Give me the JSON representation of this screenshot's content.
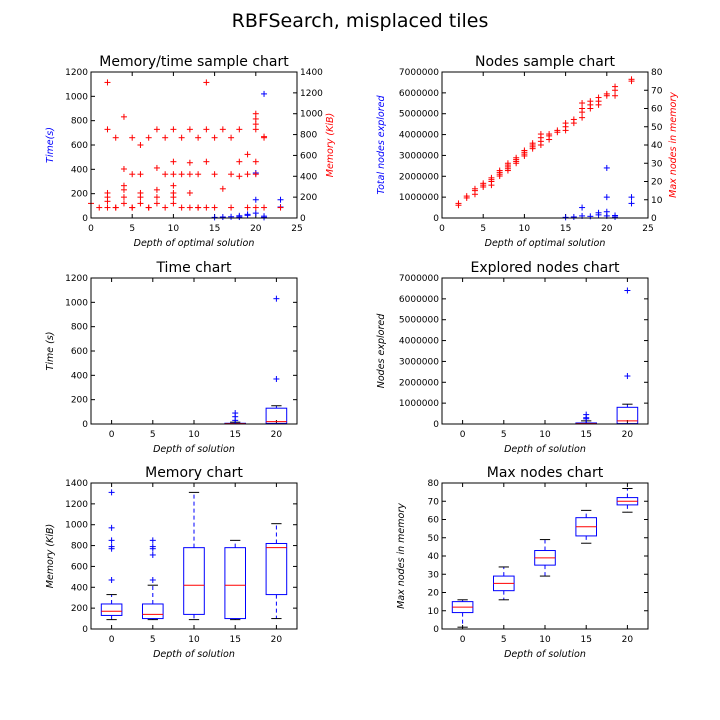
{
  "figure": {
    "title": "RBFSearch, misplaced tiles"
  },
  "chart_data": [
    {
      "id": "memtime",
      "type": "scatter",
      "title": "Memory/time sample chart",
      "xlabel": "Depth of optimal solution",
      "ylabel": "Time(s)",
      "y2label": "Memory (KiB)",
      "xlim": [
        0,
        25
      ],
      "ylim": [
        0,
        1200
      ],
      "y2lim": [
        0,
        1400
      ],
      "xticks": [
        0,
        5,
        10,
        15,
        20,
        25
      ],
      "yticks": [
        0,
        200,
        400,
        600,
        800,
        1000,
        1200
      ],
      "y2ticks": [
        0,
        200,
        400,
        600,
        800,
        1000,
        1200,
        1400
      ],
      "series": [
        {
          "axis": "left",
          "color": "#0000ff",
          "points": [
            [
              15,
              5
            ],
            [
              16,
              8
            ],
            [
              17,
              10
            ],
            [
              18,
              18
            ],
            [
              19,
              22
            ],
            [
              19,
              30
            ],
            [
              20,
              150
            ],
            [
              20,
              370
            ],
            [
              20,
              40
            ],
            [
              21,
              1020
            ],
            [
              21,
              15
            ],
            [
              23,
              150
            ],
            [
              23,
              90
            ],
            [
              21,
              5
            ],
            [
              18,
              8
            ]
          ]
        },
        {
          "axis": "right",
          "color": "#ff0000",
          "points": [
            [
              2,
              1300
            ],
            [
              2,
              850
            ],
            [
              3,
              770
            ],
            [
              4,
              970
            ],
            [
              5,
              770
            ],
            [
              6,
              700
            ],
            [
              7,
              770
            ],
            [
              8,
              850
            ],
            [
              9,
              770
            ],
            [
              10,
              850
            ],
            [
              10,
              540
            ],
            [
              11,
              770
            ],
            [
              12,
              850
            ],
            [
              12,
              530
            ],
            [
              13,
              770
            ],
            [
              14,
              1300
            ],
            [
              14,
              850
            ],
            [
              15,
              770
            ],
            [
              16,
              850
            ],
            [
              17,
              770
            ],
            [
              18,
              850
            ],
            [
              18,
              540
            ],
            [
              19,
              610
            ],
            [
              20,
              1000
            ],
            [
              20,
              950
            ],
            [
              20,
              900
            ],
            [
              20,
              850
            ],
            [
              21,
              770
            ],
            [
              21,
              780
            ],
            [
              0,
              140
            ],
            [
              2,
              240
            ],
            [
              3,
              100
            ],
            [
              4,
              470
            ],
            [
              4,
              310
            ],
            [
              4,
              270
            ],
            [
              5,
              420
            ],
            [
              5,
              100
            ],
            [
              6,
              420
            ],
            [
              7,
              100
            ],
            [
              8,
              480
            ],
            [
              8,
              270
            ],
            [
              9,
              420
            ],
            [
              10,
              420
            ],
            [
              10,
              310
            ],
            [
              11,
              420
            ],
            [
              12,
              240
            ],
            [
              12,
              420
            ],
            [
              13,
              420
            ],
            [
              13,
              100
            ],
            [
              14,
              540
            ],
            [
              15,
              420
            ],
            [
              16,
              280
            ],
            [
              17,
              420
            ],
            [
              18,
              400
            ],
            [
              19,
              420
            ],
            [
              20,
              540
            ],
            [
              20,
              420
            ],
            [
              1,
              100
            ],
            [
              2,
              100
            ],
            [
              2,
              160
            ],
            [
              2,
              200
            ],
            [
              3,
              100
            ],
            [
              4,
              140
            ],
            [
              4,
              200
            ],
            [
              5,
              100
            ],
            [
              6,
              140
            ],
            [
              6,
              200
            ],
            [
              6,
              240
            ],
            [
              7,
              100
            ],
            [
              8,
              200
            ],
            [
              8,
              140
            ],
            [
              9,
              100
            ],
            [
              10,
              140
            ],
            [
              10,
              200
            ],
            [
              10,
              240
            ],
            [
              11,
              100
            ],
            [
              12,
              100
            ],
            [
              13,
              100
            ],
            [
              14,
              100
            ],
            [
              15,
              100
            ],
            [
              17,
              100
            ],
            [
              19,
              100
            ],
            [
              20,
              100
            ],
            [
              21,
              100
            ],
            [
              23,
              100
            ]
          ]
        }
      ]
    },
    {
      "id": "nodes",
      "type": "scatter",
      "title": "Nodes sample chart",
      "xlabel": "Depth of optimal solution",
      "ylabel": "Total nodes explored",
      "y2label": "Max nodes in memory",
      "xlim": [
        0,
        25
      ],
      "ylim": [
        0,
        7000000
      ],
      "y2lim": [
        0,
        80
      ],
      "xticks": [
        0,
        5,
        10,
        15,
        20,
        25
      ],
      "yticks": [
        0,
        1000000,
        2000000,
        3000000,
        4000000,
        5000000,
        6000000,
        7000000
      ],
      "y2ticks": [
        0,
        10,
        20,
        30,
        40,
        50,
        60,
        70,
        80
      ],
      "series": [
        {
          "axis": "left",
          "color": "#0000ff",
          "points": [
            [
              15,
              30000
            ],
            [
              16,
              50000
            ],
            [
              17,
              100000
            ],
            [
              17,
              500000
            ],
            [
              18,
              80000
            ],
            [
              19,
              150000
            ],
            [
              19,
              250000
            ],
            [
              20,
              2400000
            ],
            [
              20,
              1000000
            ],
            [
              20,
              300000
            ],
            [
              20,
              100000
            ],
            [
              21,
              50000
            ],
            [
              21,
              120000
            ],
            [
              23,
              1000000
            ],
            [
              23,
              700000
            ]
          ]
        },
        {
          "axis": "right",
          "color": "#ff0000",
          "points": [
            [
              2,
              7
            ],
            [
              2,
              8
            ],
            [
              3,
              11
            ],
            [
              3,
              12
            ],
            [
              4,
              13
            ],
            [
              4,
              15
            ],
            [
              4,
              16
            ],
            [
              5,
              17
            ],
            [
              5,
              18
            ],
            [
              5,
              19
            ],
            [
              6,
              18
            ],
            [
              6,
              20
            ],
            [
              6,
              21
            ],
            [
              6,
              22
            ],
            [
              7,
              23
            ],
            [
              7,
              24
            ],
            [
              7,
              25
            ],
            [
              7,
              26
            ],
            [
              8,
              26
            ],
            [
              8,
              27
            ],
            [
              8,
              28
            ],
            [
              8,
              29
            ],
            [
              8,
              30
            ],
            [
              9,
              30
            ],
            [
              9,
              31
            ],
            [
              9,
              32
            ],
            [
              9,
              33
            ],
            [
              10,
              34
            ],
            [
              10,
              35
            ],
            [
              10,
              36
            ],
            [
              10,
              37
            ],
            [
              11,
              38
            ],
            [
              11,
              39
            ],
            [
              11,
              40
            ],
            [
              11,
              41
            ],
            [
              12,
              40
            ],
            [
              12,
              42
            ],
            [
              12,
              44
            ],
            [
              12,
              46
            ],
            [
              13,
              43
            ],
            [
              13,
              45
            ],
            [
              13,
              46
            ],
            [
              14,
              47
            ],
            [
              14,
              48
            ],
            [
              15,
              48
            ],
            [
              15,
              50
            ],
            [
              15,
              52
            ],
            [
              16,
              52
            ],
            [
              16,
              54
            ],
            [
              17,
              55
            ],
            [
              17,
              58
            ],
            [
              17,
              60
            ],
            [
              17,
              63
            ],
            [
              18,
              60
            ],
            [
              18,
              62
            ],
            [
              18,
              64
            ],
            [
              19,
              62
            ],
            [
              19,
              64
            ],
            [
              19,
              66
            ],
            [
              20,
              67
            ],
            [
              20,
              68
            ],
            [
              21,
              67
            ],
            [
              21,
              70
            ],
            [
              21,
              72
            ],
            [
              23,
              75
            ],
            [
              23,
              76
            ]
          ]
        }
      ]
    },
    {
      "id": "time",
      "type": "box",
      "title": "Time chart",
      "xlabel": "Depth of solution",
      "ylabel": "Time (s)",
      "xlim": [
        -2.5,
        22.5
      ],
      "ylim": [
        0,
        1200
      ],
      "xticks": [
        0,
        5,
        10,
        15,
        20
      ],
      "yticks": [
        0,
        200,
        400,
        600,
        800,
        1000,
        1200
      ],
      "boxes": [
        {
          "x": 15,
          "q1": 1,
          "median": 3,
          "q3": 6,
          "whislo": 0,
          "whishi": 15,
          "fliers": [
            30,
            60,
            90
          ]
        },
        {
          "x": 20,
          "q1": 5,
          "median": 20,
          "q3": 130,
          "whislo": 0,
          "whishi": 150,
          "fliers": [
            1030,
            370
          ]
        }
      ]
    },
    {
      "id": "explored",
      "type": "box",
      "title": "Explored nodes chart",
      "xlabel": "Depth of solution",
      "ylabel": "Nodes explored",
      "xlim": [
        -2.5,
        22.5
      ],
      "ylim": [
        0,
        7000000
      ],
      "xticks": [
        0,
        5,
        10,
        15,
        20
      ],
      "yticks": [
        0,
        1000000,
        2000000,
        3000000,
        4000000,
        5000000,
        6000000,
        7000000
      ],
      "boxes": [
        {
          "x": 15,
          "q1": 5000,
          "median": 20000,
          "q3": 50000,
          "whislo": 0,
          "whishi": 150000,
          "fliers": [
            250000,
            450000,
            300000
          ]
        },
        {
          "x": 20,
          "q1": 20000,
          "median": 150000,
          "q3": 800000,
          "whislo": 0,
          "whishi": 950000,
          "fliers": [
            6400000,
            2300000
          ]
        }
      ]
    },
    {
      "id": "memory",
      "type": "box",
      "title": "Memory chart",
      "xlabel": "Depth of solution",
      "ylabel": "Memory (KiB)",
      "xlim": [
        -2.5,
        22.5
      ],
      "ylim": [
        0,
        1400
      ],
      "xticks": [
        0,
        5,
        10,
        15,
        20
      ],
      "yticks": [
        0,
        200,
        400,
        600,
        800,
        1000,
        1200,
        1400
      ],
      "boxes": [
        {
          "x": 0,
          "q1": 130,
          "median": 170,
          "q3": 240,
          "whislo": 90,
          "whishi": 330,
          "fliers": [
            1310,
            970,
            850,
            790,
            770,
            470
          ]
        },
        {
          "x": 5,
          "q1": 100,
          "median": 140,
          "q3": 240,
          "whislo": 90,
          "whishi": 420,
          "fliers": [
            850,
            790,
            770,
            710,
            470
          ]
        },
        {
          "x": 10,
          "q1": 140,
          "median": 420,
          "q3": 780,
          "whislo": 90,
          "whishi": 1310,
          "fliers": []
        },
        {
          "x": 15,
          "q1": 100,
          "median": 420,
          "q3": 780,
          "whislo": 90,
          "whishi": 850,
          "fliers": []
        },
        {
          "x": 20,
          "q1": 330,
          "median": 780,
          "q3": 820,
          "whislo": 100,
          "whishi": 1010,
          "fliers": []
        }
      ]
    },
    {
      "id": "maxnodes",
      "type": "box",
      "title": "Max nodes chart",
      "xlabel": "Depth of solution",
      "ylabel": "Max nodes in memory",
      "xlim": [
        -2.5,
        22.5
      ],
      "ylim": [
        0,
        80
      ],
      "xticks": [
        0,
        5,
        10,
        15,
        20
      ],
      "yticks": [
        0,
        10,
        20,
        30,
        40,
        50,
        60,
        70,
        80
      ],
      "boxes": [
        {
          "x": 0,
          "q1": 9,
          "median": 12,
          "q3": 15,
          "whislo": 1,
          "whishi": 16,
          "fliers": []
        },
        {
          "x": 5,
          "q1": 21,
          "median": 25,
          "q3": 29,
          "whislo": 16,
          "whishi": 34,
          "fliers": []
        },
        {
          "x": 10,
          "q1": 35,
          "median": 39,
          "q3": 43,
          "whislo": 29,
          "whishi": 49,
          "fliers": []
        },
        {
          "x": 15,
          "q1": 51,
          "median": 56,
          "q3": 61,
          "whislo": 47,
          "whishi": 65,
          "fliers": []
        },
        {
          "x": 20,
          "q1": 68,
          "median": 70,
          "q3": 72,
          "whislo": 64,
          "whishi": 77,
          "fliers": []
        }
      ]
    }
  ]
}
